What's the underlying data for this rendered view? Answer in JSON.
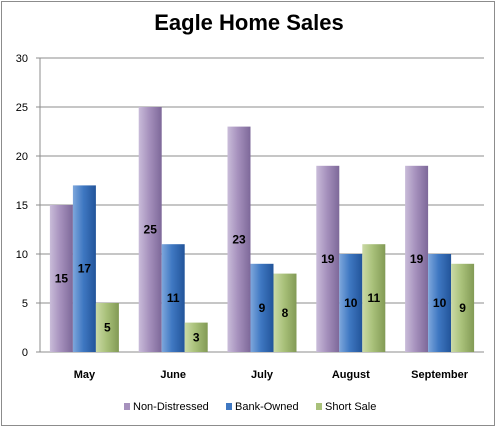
{
  "chart_data": {
    "type": "bar",
    "title": "Eagle Home Sales",
    "categories": [
      "May",
      "June",
      "July",
      "August",
      "September"
    ],
    "series": [
      {
        "name": "Non-Distressed",
        "values": [
          15,
          25,
          23,
          19,
          19
        ],
        "color": "#a691bd"
      },
      {
        "name": "Bank-Owned",
        "values": [
          17,
          11,
          9,
          10,
          10
        ],
        "color": "#3f78c2"
      },
      {
        "name": "Short Sale",
        "values": [
          5,
          3,
          8,
          11,
          9
        ],
        "color": "#a9c17a"
      }
    ],
    "ylim": [
      0,
      30
    ],
    "yticks": [
      0,
      5,
      10,
      15,
      20,
      25,
      30
    ],
    "grid": true,
    "legend": "bottom",
    "data_labels": true
  }
}
